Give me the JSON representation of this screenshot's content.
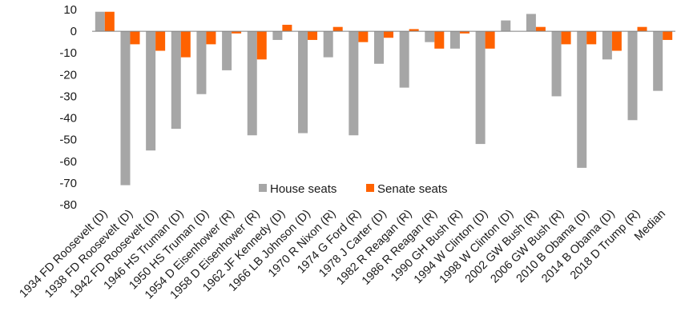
{
  "chart_data": {
    "type": "bar",
    "title": "",
    "xlabel": "",
    "ylabel": "",
    "ylim": [
      -80,
      10
    ],
    "yticks": [
      10,
      0,
      -10,
      -20,
      -30,
      -40,
      -50,
      -60,
      -70,
      -80
    ],
    "grid": false,
    "legend_position": "bottom-right (inside plot)",
    "categories": [
      "1934 FD Roosevelt (D)",
      "1938 FD Roosevelt (D)",
      "1942 FD Roosevelt (D)",
      "1946 HS Truman (D)",
      "1950 HS Truman (D)",
      "1954 D Eisenhower (R)",
      "1958 D Eisenhower (R)",
      "1962 JF Kennedy (D)",
      "1966 LB Johnson (D)",
      "1970 R Nixon (R)",
      "1974 G Ford (R)",
      "1978 J Carter (D)",
      "1982 R Reagan (R)",
      "1986 R Reagan (R)",
      "1990 GH Bush (R)",
      "1994 W Clinton (D)",
      "1998 W Clinton (D)",
      "2002 GW Bush (R)",
      "2006 GW Bush (R)",
      "2010 B Obama (D)",
      "2014 B Obama (D)",
      "2018 D Trump (R)",
      "Median"
    ],
    "series": [
      {
        "name": "House seats",
        "color": "#a6a6a6",
        "values": [
          9,
          -71,
          -55,
          -45,
          -29,
          -18,
          -48,
          -4,
          -47,
          -12,
          -48,
          -15,
          -26,
          -5,
          -8,
          -52,
          5,
          8,
          -30,
          -63,
          -13,
          -41,
          -27.5
        ]
      },
      {
        "name": "Senate seats",
        "color": "#ff6200",
        "values": [
          9,
          -6,
          -9,
          -12,
          -6,
          -1,
          -13,
          3,
          -4,
          2,
          -5,
          -3,
          1,
          -8,
          -1,
          -8,
          0,
          2,
          -6,
          -6,
          -9,
          2,
          -4
        ]
      }
    ]
  }
}
